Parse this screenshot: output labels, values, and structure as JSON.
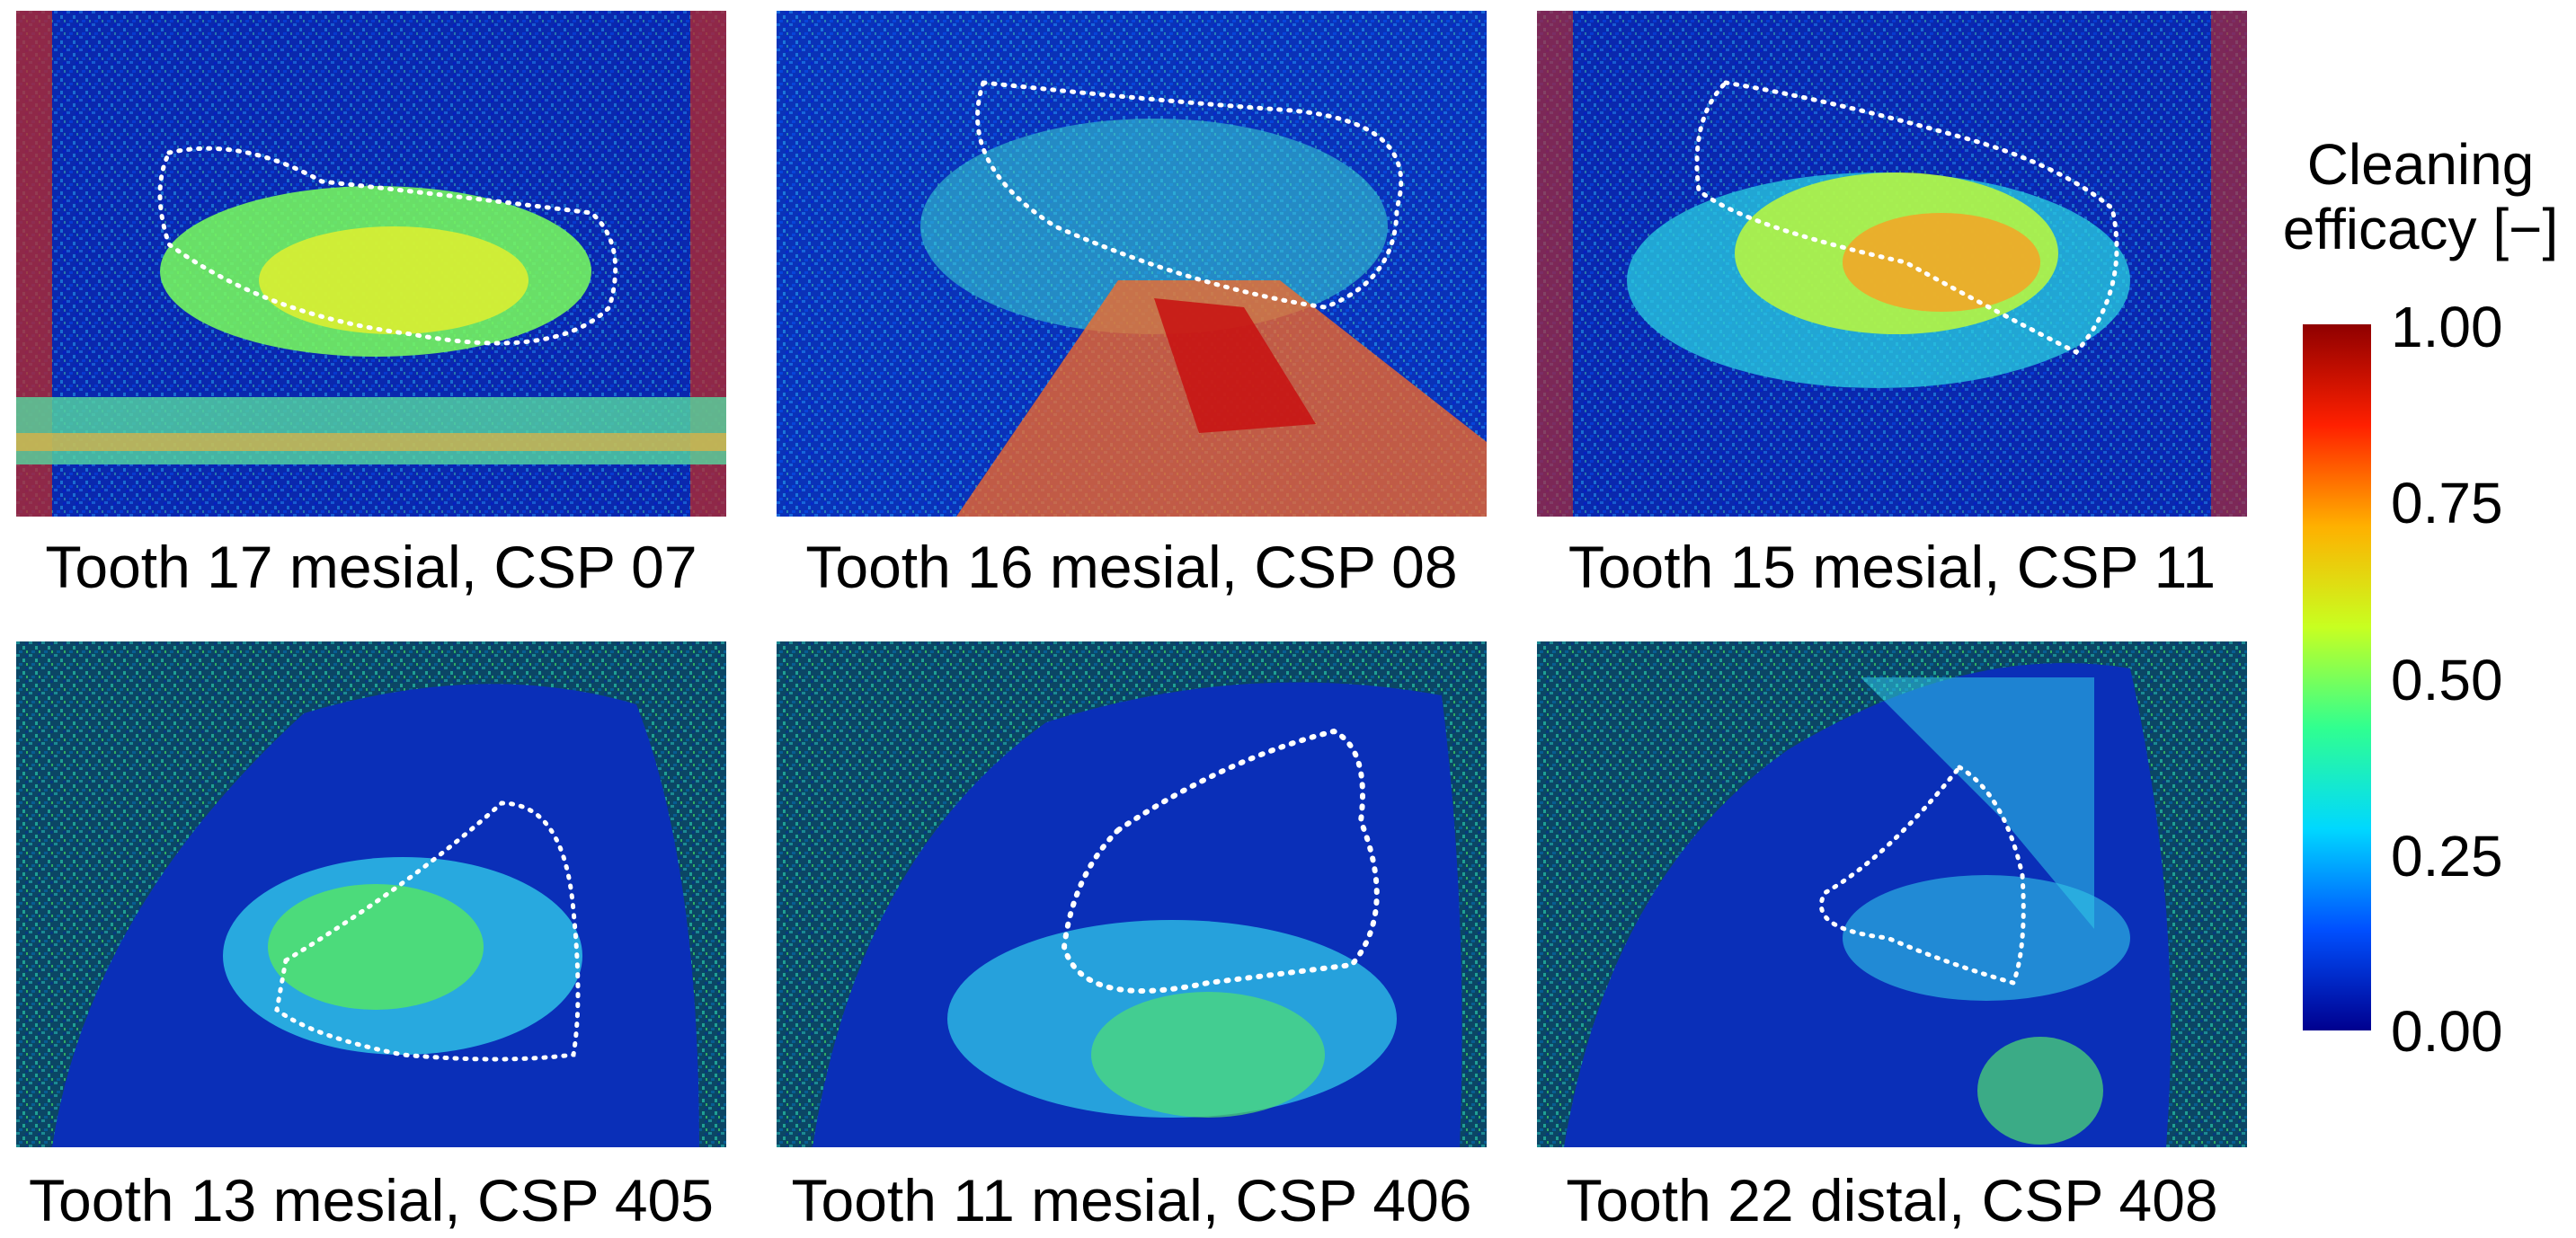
{
  "panels": [
    {
      "caption": "Tooth 17 mesial, CSP 07",
      "view": "mesial"
    },
    {
      "caption": "Tooth 16 mesial, CSP 08",
      "view": "mesial"
    },
    {
      "caption": "Tooth 15 mesial, CSP 11",
      "view": "mesial"
    },
    {
      "caption": "Tooth 13 mesial, CSP 405",
      "view": "mesial"
    },
    {
      "caption": "Tooth 11 mesial, CSP 406",
      "view": "mesial"
    },
    {
      "caption": "Tooth 22 distal, CSP 408",
      "view": "distal"
    }
  ],
  "colorbar": {
    "title_line1": "Cleaning",
    "title_line2": "efficacy [−]",
    "ticks": [
      "1.00",
      "0.75",
      "0.50",
      "0.25",
      "0.00"
    ],
    "range": [
      0,
      1
    ],
    "colormap": "jet",
    "colors": [
      "#00008f",
      "#0050ff",
      "#00d8ff",
      "#30ff90",
      "#c8ff20",
      "#ffb000",
      "#ff2000",
      "#8f0000"
    ]
  }
}
